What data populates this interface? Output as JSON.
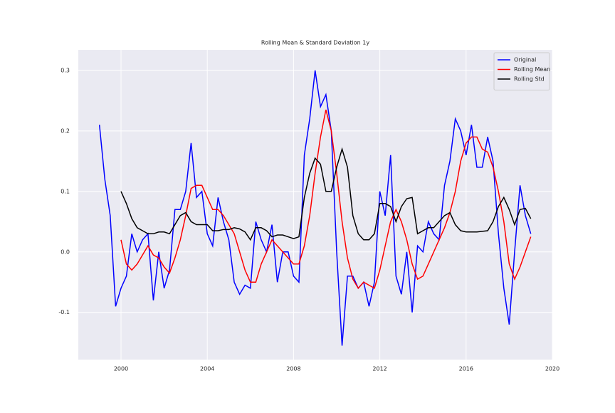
{
  "chart_data": {
    "type": "line",
    "title": "Rolling Mean & Standard Deviation 1y",
    "x": [
      1999,
      1999.25,
      1999.5,
      1999.75,
      2000,
      2000.25,
      2000.5,
      2000.75,
      2001,
      2001.25,
      2001.5,
      2001.75,
      2002,
      2002.25,
      2002.5,
      2002.75,
      2003,
      2003.25,
      2003.5,
      2003.75,
      2004,
      2004.25,
      2004.5,
      2004.75,
      2005,
      2005.25,
      2005.5,
      2005.75,
      2006,
      2006.25,
      2006.5,
      2006.75,
      2007,
      2007.25,
      2007.5,
      2007.75,
      2008,
      2008.25,
      2008.5,
      2008.75,
      2009,
      2009.25,
      2009.5,
      2009.75,
      2010,
      2010.25,
      2010.5,
      2010.75,
      2011,
      2011.25,
      2011.5,
      2011.75,
      2012,
      2012.25,
      2012.5,
      2012.75,
      2013,
      2013.25,
      2013.5,
      2013.75,
      2014,
      2014.25,
      2014.5,
      2014.75,
      2015,
      2015.25,
      2015.5,
      2015.75,
      2016,
      2016.25,
      2016.5,
      2016.75,
      2017,
      2017.25,
      2017.5,
      2017.75,
      2018,
      2018.25,
      2018.5,
      2018.75,
      2019
    ],
    "series": [
      {
        "name": "Original",
        "color": "#0000ff",
        "values": [
          0.21,
          0.12,
          0.06,
          -0.09,
          -0.06,
          -0.04,
          0.03,
          0.0,
          0.02,
          0.03,
          -0.08,
          0.0,
          -0.06,
          -0.03,
          0.07,
          0.07,
          0.1,
          0.18,
          0.09,
          0.1,
          0.03,
          0.01,
          0.09,
          0.05,
          0.02,
          -0.05,
          -0.07,
          -0.055,
          -0.06,
          0.05,
          0.02,
          0.0,
          0.045,
          -0.05,
          0.0,
          0.0,
          -0.04,
          -0.05,
          0.16,
          0.22,
          0.3,
          0.24,
          0.26,
          0.2,
          0.0,
          -0.155,
          -0.04,
          -0.04,
          -0.06,
          -0.05,
          -0.09,
          -0.05,
          0.1,
          0.06,
          0.16,
          -0.04,
          -0.07,
          0.0,
          -0.1,
          0.01,
          0.0,
          0.05,
          0.03,
          0.02,
          0.11,
          0.15,
          0.22,
          0.2,
          0.16,
          0.21,
          0.14,
          0.14,
          0.19,
          0.15,
          0.03,
          -0.06,
          -0.12,
          0.0,
          0.11,
          0.06,
          0.03
        ]
      },
      {
        "name": "Rolling Mean",
        "color": "#ff0000",
        "values": [
          null,
          null,
          null,
          null,
          0.02,
          -0.02,
          -0.03,
          -0.02,
          -0.005,
          0.01,
          -0.005,
          -0.01,
          -0.025,
          -0.035,
          -0.01,
          0.02,
          0.06,
          0.105,
          0.11,
          0.11,
          0.09,
          0.07,
          0.07,
          0.06,
          0.045,
          0.03,
          0.0,
          -0.03,
          -0.05,
          -0.05,
          -0.02,
          0.0,
          0.02,
          0.01,
          0.0,
          -0.01,
          -0.02,
          -0.02,
          0.01,
          0.06,
          0.13,
          0.19,
          0.235,
          0.2,
          0.13,
          0.05,
          -0.01,
          -0.045,
          -0.06,
          -0.05,
          -0.055,
          -0.06,
          -0.03,
          0.01,
          0.05,
          0.07,
          0.05,
          0.02,
          -0.02,
          -0.045,
          -0.04,
          -0.02,
          0.0,
          0.02,
          0.04,
          0.065,
          0.1,
          0.15,
          0.18,
          0.19,
          0.19,
          0.17,
          0.165,
          0.14,
          0.1,
          0.05,
          -0.02,
          -0.045,
          -0.025,
          0.0,
          0.025
        ]
      },
      {
        "name": "Rolling Std",
        "color": "#000000",
        "values": [
          null,
          null,
          null,
          null,
          0.1,
          0.08,
          0.055,
          0.04,
          0.035,
          0.03,
          0.03,
          0.033,
          0.033,
          0.03,
          0.045,
          0.06,
          0.065,
          0.05,
          0.045,
          0.045,
          0.045,
          0.035,
          0.035,
          0.037,
          0.037,
          0.04,
          0.038,
          0.033,
          0.02,
          0.04,
          0.04,
          0.035,
          0.025,
          0.028,
          0.028,
          0.025,
          0.022,
          0.025,
          0.09,
          0.13,
          0.155,
          0.145,
          0.1,
          0.1,
          0.14,
          0.17,
          0.14,
          0.06,
          0.03,
          0.02,
          0.02,
          0.03,
          0.08,
          0.08,
          0.075,
          0.05,
          0.075,
          0.088,
          0.09,
          0.03,
          0.035,
          0.04,
          0.04,
          0.05,
          0.06,
          0.065,
          0.045,
          0.035,
          0.033,
          0.033,
          0.033,
          0.034,
          0.035,
          0.05,
          0.075,
          0.09,
          0.07,
          0.045,
          0.07,
          0.072,
          0.055
        ]
      }
    ],
    "xlim": [
      1998.02,
      2020
    ],
    "xticks": [
      2000,
      2004,
      2008,
      2012,
      2016,
      2020
    ],
    "ylim": [
      -0.178,
      0.334
    ],
    "yticks": [
      -0.1,
      {
        "value": 0,
        "label": "0.0"
      },
      0.1,
      0.2,
      0.3
    ],
    "grid": true,
    "legend": "upper right"
  }
}
